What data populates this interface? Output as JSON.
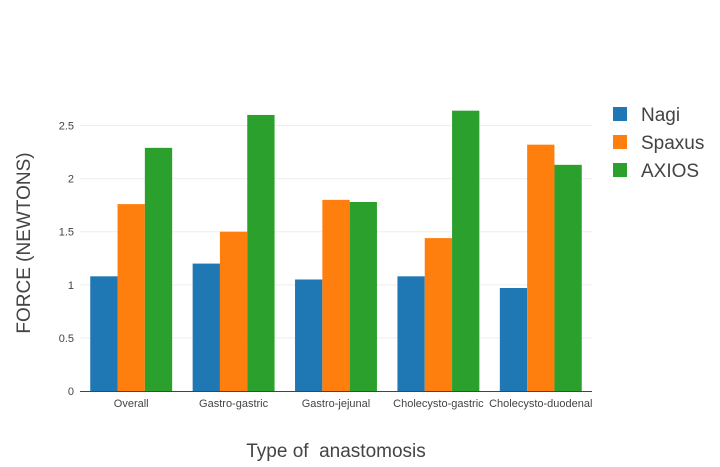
{
  "chart_data": {
    "type": "bar",
    "categories": [
      "Overall",
      "Gastro-gastric",
      "Gastro-jejunal",
      "Cholecysto-gastric",
      "Cholecysto-duodenal"
    ],
    "series": [
      {
        "name": "Nagi",
        "color": "#1f77b4",
        "values": [
          1.08,
          1.2,
          1.05,
          1.08,
          0.97
        ]
      },
      {
        "name": "Spaxus",
        "color": "#ff7f0e",
        "values": [
          1.76,
          1.5,
          1.8,
          1.44,
          2.32
        ]
      },
      {
        "name": "AXIOS",
        "color": "#2ca02c",
        "values": [
          2.29,
          2.6,
          1.78,
          2.64,
          2.13
        ]
      }
    ],
    "xlabel": "Type of  anastomosis",
    "ylabel": "FORCE (NEWTONS)",
    "ylim": [
      0,
      2.75
    ],
    "yticks": [
      0,
      0.5,
      1,
      1.5,
      2,
      2.5
    ],
    "ytick_labels": [
      "0",
      "0.5",
      "1",
      "1.5",
      "2",
      "2.5"
    ],
    "grid": true,
    "legend_position": "top-right"
  }
}
